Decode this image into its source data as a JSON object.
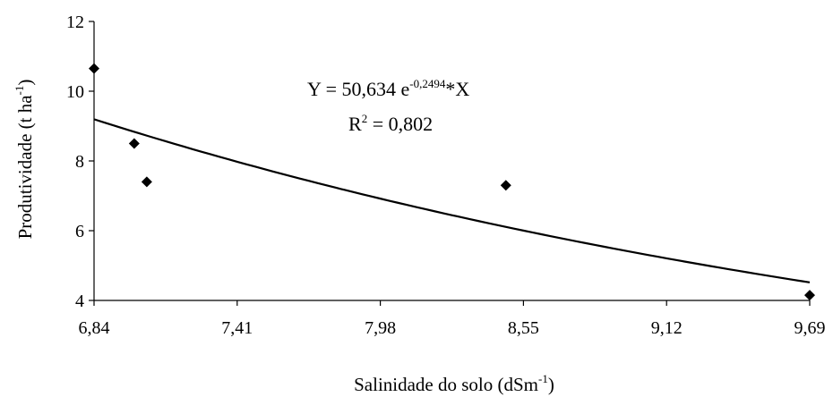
{
  "chart_data": {
    "type": "scatter",
    "title": "",
    "xlabel": "Salinidade do solo (dSm",
    "xlabel_sup": "-1",
    "xlabel_close": ")",
    "ylabel": "Produtividade (t ha",
    "ylabel_sup": "-1",
    "ylabel_close": ")",
    "xlim": [
      6.84,
      9.69
    ],
    "ylim": [
      4,
      12
    ],
    "x_ticks": [
      "6,84",
      "7,41",
      "7,98",
      "8,55",
      "9,12",
      "9,69"
    ],
    "x_tick_values": [
      6.84,
      7.41,
      7.98,
      8.55,
      9.12,
      9.69
    ],
    "y_ticks": [
      "4",
      "6",
      "8",
      "10",
      "12"
    ],
    "y_tick_values": [
      4,
      6,
      8,
      10,
      12
    ],
    "grid": false,
    "series": [
      {
        "points": [
          {
            "x": 6.84,
            "y": 10.65
          },
          {
            "x": 7.0,
            "y": 8.5
          },
          {
            "x": 7.05,
            "y": 7.4
          },
          {
            "x": 8.48,
            "y": 7.3
          },
          {
            "x": 9.69,
            "y": 4.15
          }
        ],
        "marker": "diamond",
        "color": "#000000"
      }
    ],
    "trendline": {
      "type": "exponential",
      "a": 50.634,
      "b": -0.2494,
      "x_range": [
        6.84,
        9.69
      ],
      "color": "#000000"
    },
    "annotation": {
      "eq_prefix": "Y = 50,634 e",
      "eq_exponent": "-0,2494",
      "eq_suffix": "*X",
      "r2_prefix": "R",
      "r2_sup": "2",
      "r2_suffix": " = 0,802"
    }
  }
}
